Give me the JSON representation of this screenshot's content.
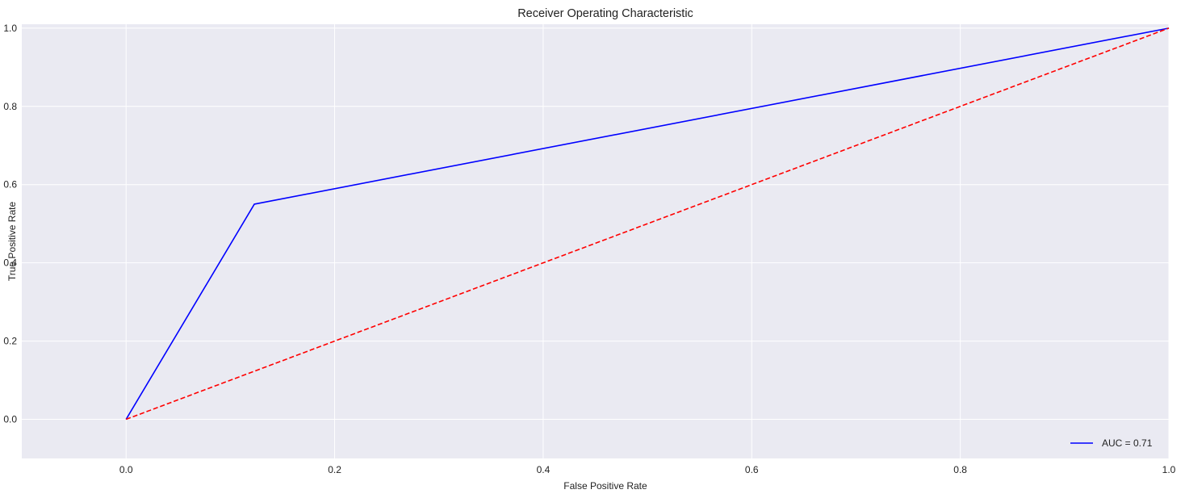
{
  "chart_data": {
    "type": "line",
    "title": "Receiver Operating Characteristic",
    "xlabel": "False Positive Rate",
    "ylabel": "True Positive Rate",
    "xlim": [
      -0.1,
      1.0
    ],
    "ylim": [
      -0.1,
      1.01
    ],
    "xticks": [
      0.0,
      0.2,
      0.4,
      0.6,
      0.8,
      1.0
    ],
    "xtick_labels": [
      "0.0",
      "0.2",
      "0.4",
      "0.6",
      "0.8",
      "1.0"
    ],
    "yticks": [
      0.0,
      0.2,
      0.4,
      0.6,
      0.8,
      1.0
    ],
    "ytick_labels": [
      "0.0",
      "0.2",
      "0.4",
      "0.6",
      "0.8",
      "1.0"
    ],
    "grid": true,
    "legend_position": "lower-right",
    "series": [
      {
        "name": "AUC = 0.71",
        "x": [
          0.0,
          0.123,
          1.0
        ],
        "y": [
          0.0,
          0.55,
          1.0
        ],
        "color": "#0000ff",
        "line_style": "solid",
        "in_legend": true
      },
      {
        "name": "",
        "x": [
          0.0,
          1.0
        ],
        "y": [
          0.0,
          1.0
        ],
        "color": "#ff0000",
        "line_style": "dashed",
        "in_legend": false
      }
    ],
    "plot_background": "#eaeaf2",
    "grid_color": "#ffffff"
  }
}
